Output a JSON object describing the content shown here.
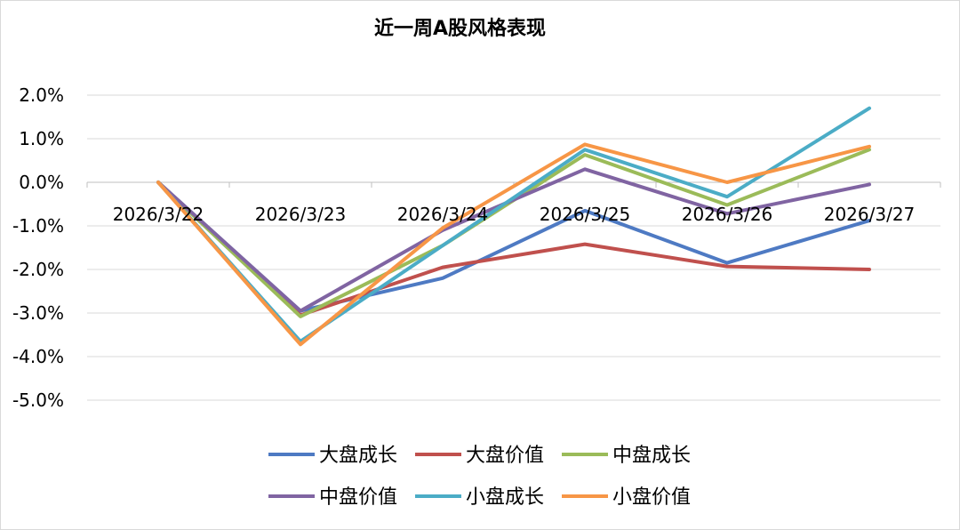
{
  "chart_data": {
    "type": "line",
    "title": "近一周A股风格表现",
    "xlabel": "",
    "ylabel": "",
    "categories": [
      "2026/3/22",
      "2026/3/23",
      "2026/3/24",
      "2026/3/25",
      "2026/3/26",
      "2026/3/27"
    ],
    "ylim": [
      -5.0,
      2.0
    ],
    "yticks": [
      "2.0%",
      "1.0%",
      "0.0%",
      "-1.0%",
      "-2.0%",
      "-3.0%",
      "-4.0%",
      "-5.0%"
    ],
    "grid": true,
    "legend_position": "bottom",
    "series": [
      {
        "name": "大盘成长",
        "color": "#4e7ac3",
        "values": [
          0.0,
          -2.95,
          -2.2,
          -0.65,
          -1.85,
          -0.88
        ]
      },
      {
        "name": "大盘价值",
        "color": "#c0504d",
        "values": [
          0.0,
          -3.05,
          -1.95,
          -1.42,
          -1.93,
          -2.0
        ]
      },
      {
        "name": "中盘成长",
        "color": "#9bbb59",
        "values": [
          0.0,
          -3.08,
          -1.45,
          0.63,
          -0.52,
          0.75
        ]
      },
      {
        "name": "中盘价值",
        "color": "#8064a2",
        "values": [
          0.0,
          -2.95,
          -1.1,
          0.3,
          -0.72,
          -0.05
        ]
      },
      {
        "name": "小盘成长",
        "color": "#4bacc6",
        "values": [
          0.0,
          -3.65,
          -1.45,
          0.75,
          -0.33,
          1.7
        ]
      },
      {
        "name": "小盘价值",
        "color": "#f79646",
        "values": [
          0.0,
          -3.72,
          -1.05,
          0.87,
          0.0,
          0.82
        ]
      }
    ]
  }
}
